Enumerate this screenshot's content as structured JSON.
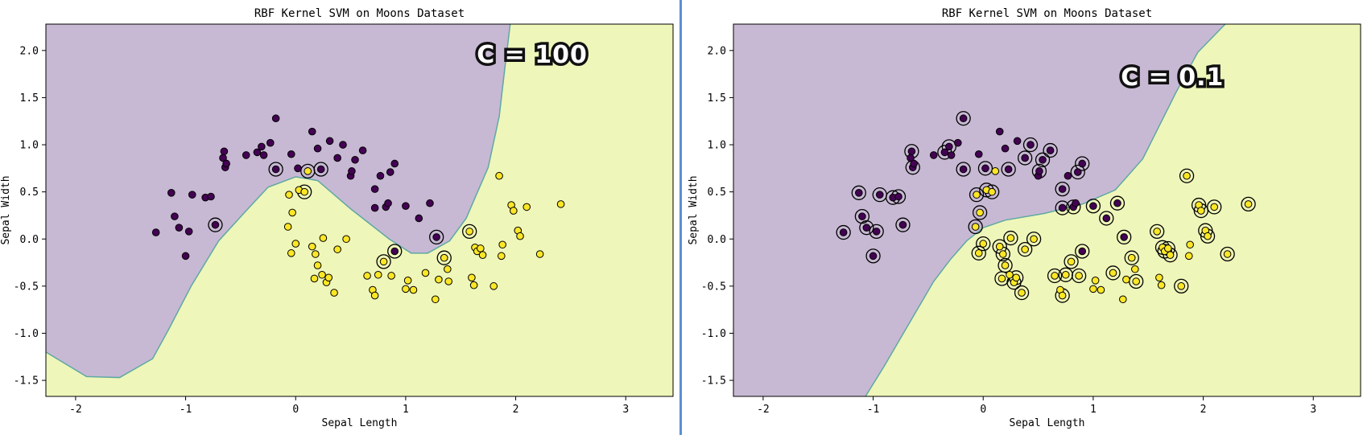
{
  "colors": {
    "class0": "#440154",
    "class1": "#fde725",
    "region0": "#c7b9d3",
    "region1": "#eff6b9",
    "boundary": "#5fa8a4",
    "marker_edge": "#000000"
  },
  "chart_data": [
    {
      "type": "scatter",
      "title": "RBF Kernel SVM on Moons Dataset",
      "xlabel": "Sepal Length",
      "ylabel": "Sepal Width",
      "xlim": [
        -2.27,
        3.43
      ],
      "ylim": [
        -1.67,
        2.28
      ],
      "xticks": [
        -2,
        -1,
        0,
        1,
        2,
        3
      ],
      "yticks": [
        -1.5,
        -1.0,
        -0.5,
        0.0,
        0.5,
        1.0,
        1.5,
        2.0
      ],
      "annotation": "C = 100",
      "annotation_pos": [
        2.15,
        1.87
      ],
      "model": "rbf-svm",
      "C": 100,
      "boundary": [
        [
          -2.27,
          -1.2
        ],
        [
          -1.9,
          -1.46
        ],
        [
          -1.6,
          -1.47
        ],
        [
          -1.3,
          -1.27
        ],
        [
          -1.15,
          -0.95
        ],
        [
          -0.95,
          -0.5
        ],
        [
          -0.7,
          -0.02
        ],
        [
          -0.45,
          0.3
        ],
        [
          -0.25,
          0.55
        ],
        [
          0.0,
          0.66
        ],
        [
          0.2,
          0.62
        ],
        [
          0.5,
          0.32
        ],
        [
          0.85,
          0.0
        ],
        [
          1.05,
          -0.15
        ],
        [
          1.2,
          -0.15
        ],
        [
          1.4,
          -0.02
        ],
        [
          1.55,
          0.22
        ],
        [
          1.75,
          0.76
        ],
        [
          1.85,
          1.3
        ],
        [
          1.9,
          1.8
        ],
        [
          1.95,
          2.28
        ]
      ],
      "region_fill_side": "upper-left",
      "class0_points": [
        [
          -1.27,
          0.07
        ],
        [
          -1.13,
          0.49
        ],
        [
          -1.1,
          0.24
        ],
        [
          -1.06,
          0.12
        ],
        [
          -1.0,
          -0.18
        ],
        [
          -0.97,
          0.08
        ],
        [
          -0.94,
          0.47
        ],
        [
          -0.82,
          0.44
        ],
        [
          -0.77,
          0.45
        ],
        [
          -0.73,
          0.15
        ],
        [
          -0.66,
          0.86
        ],
        [
          -0.65,
          0.93
        ],
        [
          -0.64,
          0.76
        ],
        [
          -0.63,
          0.8
        ],
        [
          -0.45,
          0.89
        ],
        [
          -0.35,
          0.92
        ],
        [
          -0.31,
          0.98
        ],
        [
          -0.29,
          0.89
        ],
        [
          -0.23,
          1.02
        ],
        [
          -0.18,
          0.74
        ],
        [
          -0.18,
          1.28
        ],
        [
          -0.04,
          0.9
        ],
        [
          0.02,
          0.75
        ],
        [
          0.15,
          1.14
        ],
        [
          0.2,
          0.96
        ],
        [
          0.23,
          0.74
        ],
        [
          0.31,
          1.04
        ],
        [
          0.38,
          0.86
        ],
        [
          0.43,
          1.0
        ],
        [
          0.5,
          0.67
        ],
        [
          0.51,
          0.72
        ],
        [
          0.54,
          0.84
        ],
        [
          0.61,
          0.94
        ],
        [
          0.72,
          0.53
        ],
        [
          0.72,
          0.33
        ],
        [
          0.77,
          0.67
        ],
        [
          0.82,
          0.34
        ],
        [
          0.84,
          0.38
        ],
        [
          0.86,
          0.71
        ],
        [
          0.9,
          0.8
        ],
        [
          0.9,
          -0.13
        ],
        [
          1.0,
          0.35
        ],
        [
          1.12,
          0.22
        ],
        [
          1.22,
          0.38
        ],
        [
          1.28,
          0.02
        ]
      ],
      "class1_points": [
        [
          -0.07,
          0.13
        ],
        [
          -0.06,
          0.47
        ],
        [
          -0.04,
          -0.15
        ],
        [
          -0.03,
          0.28
        ],
        [
          0.0,
          -0.05
        ],
        [
          0.03,
          0.52
        ],
        [
          0.08,
          0.5
        ],
        [
          0.11,
          0.72
        ],
        [
          0.15,
          -0.08
        ],
        [
          0.17,
          -0.42
        ],
        [
          0.18,
          -0.16
        ],
        [
          0.2,
          -0.28
        ],
        [
          0.24,
          -0.38
        ],
        [
          0.25,
          0.01
        ],
        [
          0.28,
          -0.46
        ],
        [
          0.3,
          -0.41
        ],
        [
          0.35,
          -0.57
        ],
        [
          0.38,
          -0.11
        ],
        [
          0.46,
          -0.0
        ],
        [
          0.65,
          -0.39
        ],
        [
          0.7,
          -0.54
        ],
        [
          0.72,
          -0.6
        ],
        [
          0.75,
          -0.38
        ],
        [
          0.8,
          -0.24
        ],
        [
          0.87,
          -0.39
        ],
        [
          1.0,
          -0.53
        ],
        [
          1.02,
          -0.44
        ],
        [
          1.07,
          -0.54
        ],
        [
          1.18,
          -0.36
        ],
        [
          1.27,
          -0.64
        ],
        [
          1.3,
          -0.43
        ],
        [
          1.35,
          -0.2
        ],
        [
          1.38,
          -0.32
        ],
        [
          1.39,
          -0.45
        ],
        [
          1.58,
          0.08
        ],
        [
          1.6,
          -0.41
        ],
        [
          1.62,
          -0.49
        ],
        [
          1.63,
          -0.09
        ],
        [
          1.65,
          -0.13
        ],
        [
          1.68,
          -0.1
        ],
        [
          1.7,
          -0.17
        ],
        [
          1.8,
          -0.5
        ],
        [
          1.85,
          0.67
        ],
        [
          1.87,
          -0.18
        ],
        [
          1.88,
          -0.06
        ],
        [
          1.96,
          0.36
        ],
        [
          1.98,
          0.3
        ],
        [
          2.02,
          0.09
        ],
        [
          2.04,
          0.03
        ],
        [
          2.1,
          0.34
        ],
        [
          2.22,
          -0.16
        ],
        [
          2.41,
          0.37
        ]
      ],
      "support_vectors": [
        [
          -0.73,
          0.15
        ],
        [
          -0.18,
          0.74
        ],
        [
          0.23,
          0.74
        ],
        [
          0.9,
          -0.13
        ],
        [
          1.28,
          0.02
        ],
        [
          0.08,
          0.5
        ],
        [
          0.11,
          0.72
        ],
        [
          0.8,
          -0.24
        ],
        [
          1.35,
          -0.2
        ],
        [
          1.58,
          0.08
        ]
      ]
    },
    {
      "type": "scatter",
      "title": "RBF Kernel SVM on Moons Dataset",
      "xlabel": "Sepal Length",
      "ylabel": "Sepal Width",
      "xlim": [
        -2.27,
        3.43
      ],
      "ylim": [
        -1.67,
        2.28
      ],
      "xticks": [
        -2,
        -1,
        0,
        1,
        2,
        3
      ],
      "yticks": [
        -1.5,
        -1.0,
        -0.5,
        0.0,
        0.5,
        1.0,
        1.5,
        2.0
      ],
      "annotation": "C = 0.1",
      "annotation_pos": [
        1.72,
        1.63
      ],
      "model": "rbf-svm",
      "C": 0.1,
      "boundary": [
        [
          -1.07,
          -1.67
        ],
        [
          -0.9,
          -1.35
        ],
        [
          -0.7,
          -0.95
        ],
        [
          -0.45,
          -0.45
        ],
        [
          -0.3,
          -0.22
        ],
        [
          -0.15,
          -0.02
        ],
        [
          0.0,
          0.12
        ],
        [
          0.2,
          0.2
        ],
        [
          0.55,
          0.27
        ],
        [
          0.9,
          0.37
        ],
        [
          1.2,
          0.52
        ],
        [
          1.45,
          0.85
        ],
        [
          1.6,
          1.2
        ],
        [
          1.75,
          1.55
        ],
        [
          1.95,
          1.98
        ],
        [
          2.2,
          2.28
        ]
      ],
      "region_fill_side": "upper-left",
      "class0_points": [
        [
          -1.27,
          0.07
        ],
        [
          -1.13,
          0.49
        ],
        [
          -1.1,
          0.24
        ],
        [
          -1.06,
          0.12
        ],
        [
          -1.0,
          -0.18
        ],
        [
          -0.97,
          0.08
        ],
        [
          -0.94,
          0.47
        ],
        [
          -0.82,
          0.44
        ],
        [
          -0.77,
          0.45
        ],
        [
          -0.73,
          0.15
        ],
        [
          -0.66,
          0.86
        ],
        [
          -0.65,
          0.93
        ],
        [
          -0.64,
          0.76
        ],
        [
          -0.63,
          0.8
        ],
        [
          -0.45,
          0.89
        ],
        [
          -0.35,
          0.92
        ],
        [
          -0.31,
          0.98
        ],
        [
          -0.29,
          0.89
        ],
        [
          -0.23,
          1.02
        ],
        [
          -0.18,
          0.74
        ],
        [
          -0.18,
          1.28
        ],
        [
          -0.04,
          0.9
        ],
        [
          0.02,
          0.75
        ],
        [
          0.15,
          1.14
        ],
        [
          0.2,
          0.96
        ],
        [
          0.23,
          0.74
        ],
        [
          0.31,
          1.04
        ],
        [
          0.38,
          0.86
        ],
        [
          0.43,
          1.0
        ],
        [
          0.5,
          0.67
        ],
        [
          0.51,
          0.72
        ],
        [
          0.54,
          0.84
        ],
        [
          0.61,
          0.94
        ],
        [
          0.72,
          0.53
        ],
        [
          0.72,
          0.33
        ],
        [
          0.77,
          0.67
        ],
        [
          0.82,
          0.34
        ],
        [
          0.84,
          0.38
        ],
        [
          0.86,
          0.71
        ],
        [
          0.9,
          0.8
        ],
        [
          0.9,
          -0.13
        ],
        [
          1.0,
          0.35
        ],
        [
          1.12,
          0.22
        ],
        [
          1.22,
          0.38
        ],
        [
          1.28,
          0.02
        ]
      ],
      "class1_points": [
        [
          -0.07,
          0.13
        ],
        [
          -0.06,
          0.47
        ],
        [
          -0.04,
          -0.15
        ],
        [
          -0.03,
          0.28
        ],
        [
          0.0,
          -0.05
        ],
        [
          0.03,
          0.52
        ],
        [
          0.08,
          0.5
        ],
        [
          0.11,
          0.72
        ],
        [
          0.15,
          -0.08
        ],
        [
          0.17,
          -0.42
        ],
        [
          0.18,
          -0.16
        ],
        [
          0.2,
          -0.28
        ],
        [
          0.24,
          -0.38
        ],
        [
          0.25,
          0.01
        ],
        [
          0.28,
          -0.46
        ],
        [
          0.3,
          -0.41
        ],
        [
          0.35,
          -0.57
        ],
        [
          0.38,
          -0.11
        ],
        [
          0.46,
          -0.0
        ],
        [
          0.65,
          -0.39
        ],
        [
          0.7,
          -0.54
        ],
        [
          0.72,
          -0.6
        ],
        [
          0.75,
          -0.38
        ],
        [
          0.8,
          -0.24
        ],
        [
          0.87,
          -0.39
        ],
        [
          1.0,
          -0.53
        ],
        [
          1.02,
          -0.44
        ],
        [
          1.07,
          -0.54
        ],
        [
          1.18,
          -0.36
        ],
        [
          1.27,
          -0.64
        ],
        [
          1.3,
          -0.43
        ],
        [
          1.35,
          -0.2
        ],
        [
          1.38,
          -0.32
        ],
        [
          1.39,
          -0.45
        ],
        [
          1.58,
          0.08
        ],
        [
          1.6,
          -0.41
        ],
        [
          1.62,
          -0.49
        ],
        [
          1.63,
          -0.09
        ],
        [
          1.65,
          -0.13
        ],
        [
          1.68,
          -0.1
        ],
        [
          1.7,
          -0.17
        ],
        [
          1.8,
          -0.5
        ],
        [
          1.85,
          0.67
        ],
        [
          1.87,
          -0.18
        ],
        [
          1.88,
          -0.06
        ],
        [
          1.96,
          0.36
        ],
        [
          1.98,
          0.3
        ],
        [
          2.02,
          0.09
        ],
        [
          2.04,
          0.03
        ],
        [
          2.1,
          0.34
        ],
        [
          2.22,
          -0.16
        ],
        [
          2.41,
          0.37
        ]
      ],
      "support_vectors": [
        [
          -1.27,
          0.07
        ],
        [
          -1.13,
          0.49
        ],
        [
          -1.1,
          0.24
        ],
        [
          -1.06,
          0.12
        ],
        [
          -1.0,
          -0.18
        ],
        [
          -0.97,
          0.08
        ],
        [
          -0.94,
          0.47
        ],
        [
          -0.82,
          0.44
        ],
        [
          -0.77,
          0.45
        ],
        [
          -0.73,
          0.15
        ],
        [
          -0.65,
          0.93
        ],
        [
          -0.64,
          0.76
        ],
        [
          -0.35,
          0.92
        ],
        [
          -0.31,
          0.98
        ],
        [
          -0.18,
          0.74
        ],
        [
          -0.18,
          1.28
        ],
        [
          0.02,
          0.75
        ],
        [
          0.23,
          0.74
        ],
        [
          0.38,
          0.86
        ],
        [
          0.43,
          1.0
        ],
        [
          0.51,
          0.72
        ],
        [
          0.54,
          0.84
        ],
        [
          0.61,
          0.94
        ],
        [
          0.72,
          0.53
        ],
        [
          0.72,
          0.33
        ],
        [
          0.82,
          0.34
        ],
        [
          0.86,
          0.71
        ],
        [
          0.9,
          0.8
        ],
        [
          0.9,
          -0.13
        ],
        [
          1.0,
          0.35
        ],
        [
          1.12,
          0.22
        ],
        [
          1.22,
          0.38
        ],
        [
          1.28,
          0.02
        ],
        [
          -0.07,
          0.13
        ],
        [
          -0.06,
          0.47
        ],
        [
          -0.04,
          -0.15
        ],
        [
          -0.03,
          0.28
        ],
        [
          0.0,
          -0.05
        ],
        [
          0.03,
          0.52
        ],
        [
          0.08,
          0.5
        ],
        [
          0.15,
          -0.08
        ],
        [
          0.17,
          -0.42
        ],
        [
          0.18,
          -0.16
        ],
        [
          0.2,
          -0.28
        ],
        [
          0.25,
          0.01
        ],
        [
          0.28,
          -0.46
        ],
        [
          0.3,
          -0.41
        ],
        [
          0.35,
          -0.57
        ],
        [
          0.38,
          -0.11
        ],
        [
          0.46,
          -0.0
        ],
        [
          0.65,
          -0.39
        ],
        [
          0.72,
          -0.6
        ],
        [
          0.75,
          -0.38
        ],
        [
          0.8,
          -0.24
        ],
        [
          0.87,
          -0.39
        ],
        [
          1.18,
          -0.36
        ],
        [
          1.35,
          -0.2
        ],
        [
          1.39,
          -0.45
        ],
        [
          1.58,
          0.08
        ],
        [
          1.63,
          -0.09
        ],
        [
          1.65,
          -0.13
        ],
        [
          1.68,
          -0.1
        ],
        [
          1.7,
          -0.17
        ],
        [
          1.8,
          -0.5
        ],
        [
          1.85,
          0.67
        ],
        [
          1.96,
          0.36
        ],
        [
          1.98,
          0.3
        ],
        [
          2.02,
          0.09
        ],
        [
          2.04,
          0.03
        ],
        [
          2.1,
          0.34
        ],
        [
          2.22,
          -0.16
        ],
        [
          2.41,
          0.37
        ]
      ]
    }
  ]
}
